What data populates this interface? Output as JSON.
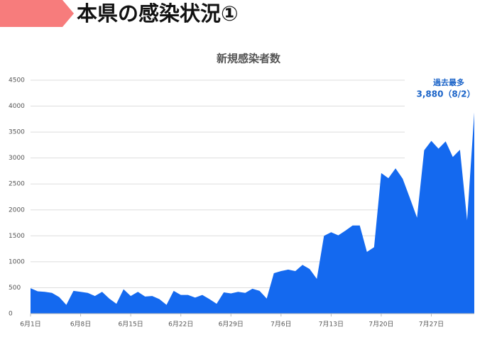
{
  "header": {
    "title": "本県の感染状況①"
  },
  "chart_data": {
    "type": "area",
    "title": "新規感染者数",
    "categories": [
      "6月1日",
      null,
      null,
      null,
      null,
      null,
      null,
      "6月8日",
      null,
      null,
      null,
      null,
      null,
      null,
      "6月15日",
      null,
      null,
      null,
      null,
      null,
      null,
      "6月22日",
      null,
      null,
      null,
      null,
      null,
      null,
      "6月29日",
      null,
      null,
      null,
      null,
      null,
      null,
      "7月6日",
      null,
      null,
      null,
      null,
      null,
      null,
      "7月13日",
      null,
      null,
      null,
      null,
      null,
      null,
      "7月20日",
      null,
      null,
      null,
      null,
      null,
      null,
      "7月27日",
      null,
      null,
      null,
      null,
      null,
      null
    ],
    "values": [
      490,
      430,
      420,
      400,
      320,
      170,
      440,
      420,
      400,
      340,
      420,
      290,
      190,
      470,
      340,
      420,
      330,
      340,
      280,
      170,
      440,
      360,
      360,
      310,
      360,
      280,
      190,
      410,
      390,
      420,
      400,
      480,
      440,
      290,
      780,
      820,
      850,
      820,
      940,
      860,
      670,
      1500,
      1570,
      1510,
      1600,
      1700,
      1700,
      1190,
      1280,
      2710,
      2610,
      2800,
      2600,
      2230,
      1850,
      3150,
      3330,
      3180,
      3320,
      3020,
      3160,
      1800,
      3880
    ],
    "color": "#1469ef",
    "ylim": [
      0,
      4500
    ],
    "yticks": [
      0,
      500,
      1000,
      1500,
      2000,
      2500,
      3000,
      3500,
      4000,
      4500
    ],
    "grid": true,
    "annotations": [
      "過去最多",
      "3,880（8/2）"
    ]
  }
}
